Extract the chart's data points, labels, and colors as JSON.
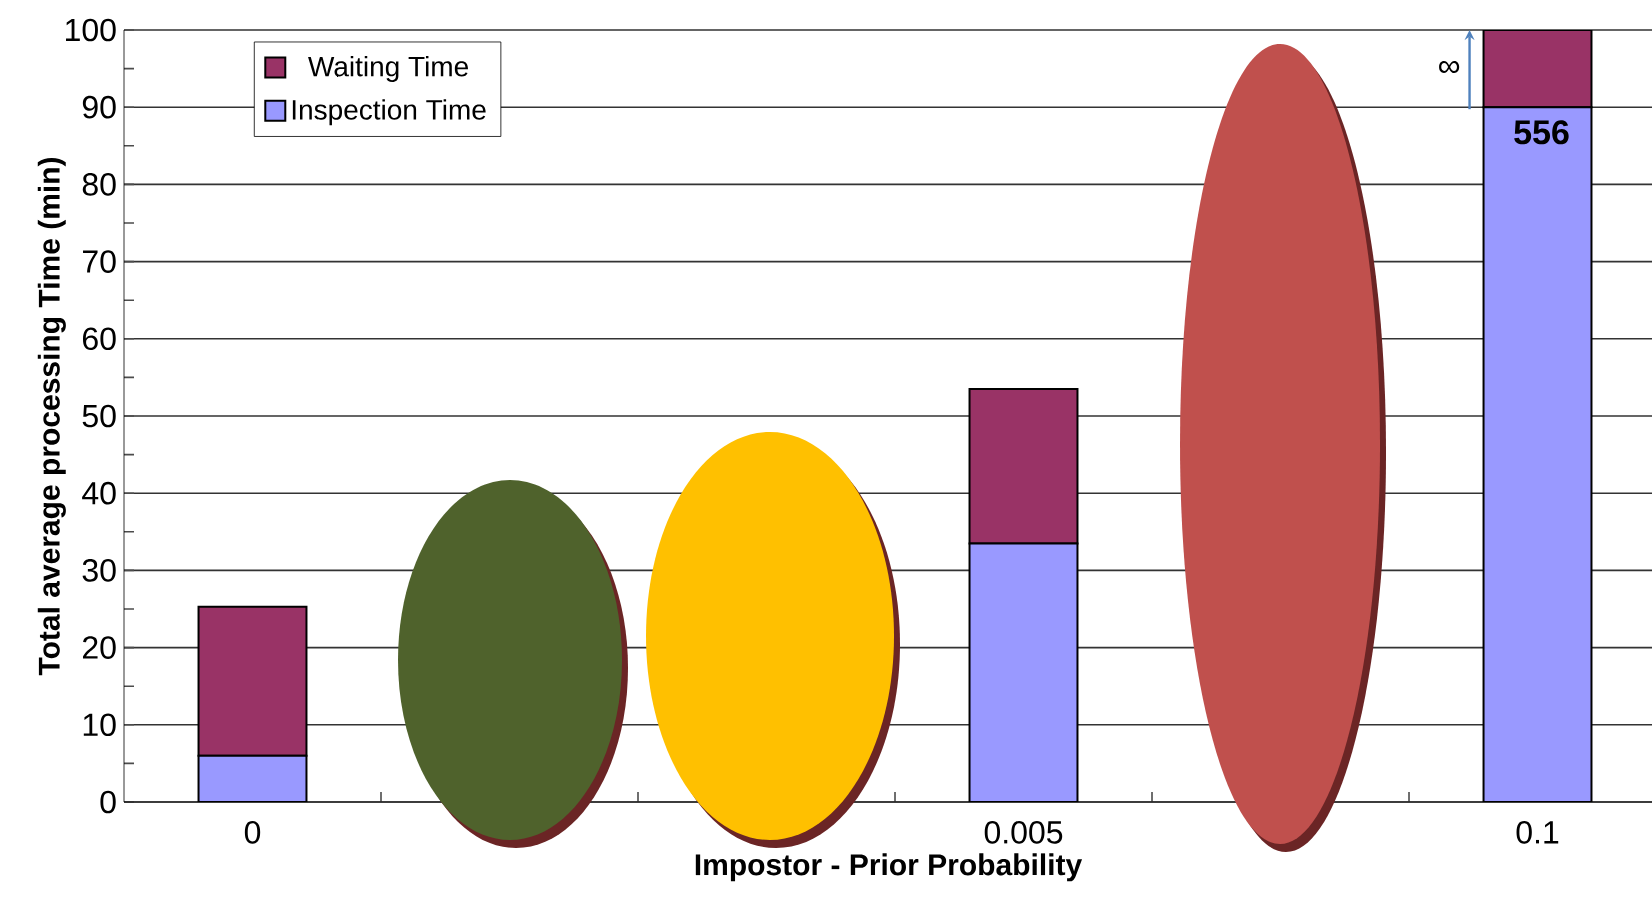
{
  "chart_data": {
    "type": "bar",
    "stacked": true,
    "xlabel": "Impostor - Prior Probability",
    "ylabel": "Total average processing Time (min)",
    "categories": [
      "0",
      null,
      null,
      "0.005",
      null,
      "0.1"
    ],
    "series": [
      {
        "name": "Inspection Time",
        "color": "#9999ff",
        "values": [
          6,
          null,
          null,
          33.5,
          null,
          90
        ]
      },
      {
        "name": "Waiting Time",
        "color": "#993366",
        "values": [
          19.3,
          null,
          null,
          20,
          null,
          10
        ]
      }
    ],
    "ylim": [
      0,
      100
    ],
    "yticks": [
      0,
      10,
      20,
      30,
      40,
      50,
      60,
      70,
      80,
      90,
      100
    ],
    "grid": "y",
    "legend": "top left",
    "annotations": [
      "556",
      "∞"
    ]
  }
}
